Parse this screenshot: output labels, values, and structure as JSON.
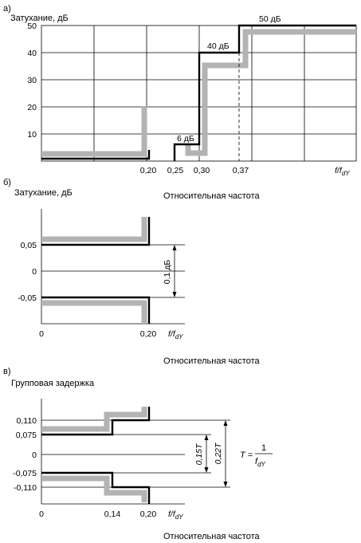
{
  "panel_a": {
    "tag": "а)",
    "ylabel": "Затухание, дБ",
    "yticks": [
      "50",
      "40",
      "30",
      "20",
      "10"
    ],
    "xticks": [
      "0,20",
      "0,25",
      "0,30",
      "0,37"
    ],
    "xaxis": "f/f",
    "xaxis_sub": "dY",
    "annotations": [
      "6 дБ",
      "40 дБ",
      "50 дБ"
    ]
  },
  "panel_b": {
    "tag": "б)",
    "ylabel": "Затухание, дБ",
    "xlabel": "Относительная частота",
    "yticks": [
      "0,05",
      "0",
      "-0,05"
    ],
    "xticks": [
      "0",
      "0,20"
    ],
    "xaxis": "f/f",
    "xaxis_sub": "dY",
    "dim_label": "0,1 дБ",
    "caption": "Относительная частота"
  },
  "panel_c": {
    "tag": "в)",
    "ylabel": "Групповая задержка",
    "yticks": [
      "0,110",
      "0,075",
      "0",
      "-0,075",
      "-0,110"
    ],
    "xticks": [
      "0",
      "0,14",
      "0,20"
    ],
    "xaxis": "f/f",
    "xaxis_sub": "dY",
    "dim1": "0,15T",
    "dim2": "0,22T",
    "formula_lhs": "T =",
    "formula_num": "1",
    "formula_den": "f",
    "formula_den_sub": "dY",
    "caption": "Относительная частота"
  },
  "chart_data": [
    {
      "type": "line",
      "ylabel": "Затухание, дБ",
      "ylim": [
        0,
        50
      ],
      "x": [
        0,
        0.2,
        0.2,
        0.25,
        0.25,
        0.3,
        0.3,
        0.37,
        0.37
      ],
      "series": [
        {
          "values": [
            0,
            0,
            6,
            6,
            40,
            40,
            50,
            50,
            50
          ]
        }
      ],
      "annotations": [
        "6 дБ",
        "40 дБ",
        "50 дБ"
      ]
    },
    {
      "type": "line",
      "ylabel": "Затухание, дБ",
      "xlabel": "Относительная частота",
      "x": [
        0,
        0.2
      ],
      "series": [
        {
          "values": [
            0.05,
            0.05
          ]
        },
        {
          "values": [
            -0.05,
            -0.05
          ]
        }
      ]
    },
    {
      "type": "line",
      "ylabel": "Групповая задержка",
      "xlabel": "Относительная частота",
      "x": [
        0,
        0.14,
        0.14,
        0.2
      ],
      "series": [
        {
          "values": [
            0.075,
            0.075,
            0.11,
            0.11
          ]
        },
        {
          "values": [
            -0.075,
            -0.075,
            -0.11,
            -0.11
          ]
        }
      ]
    }
  ]
}
